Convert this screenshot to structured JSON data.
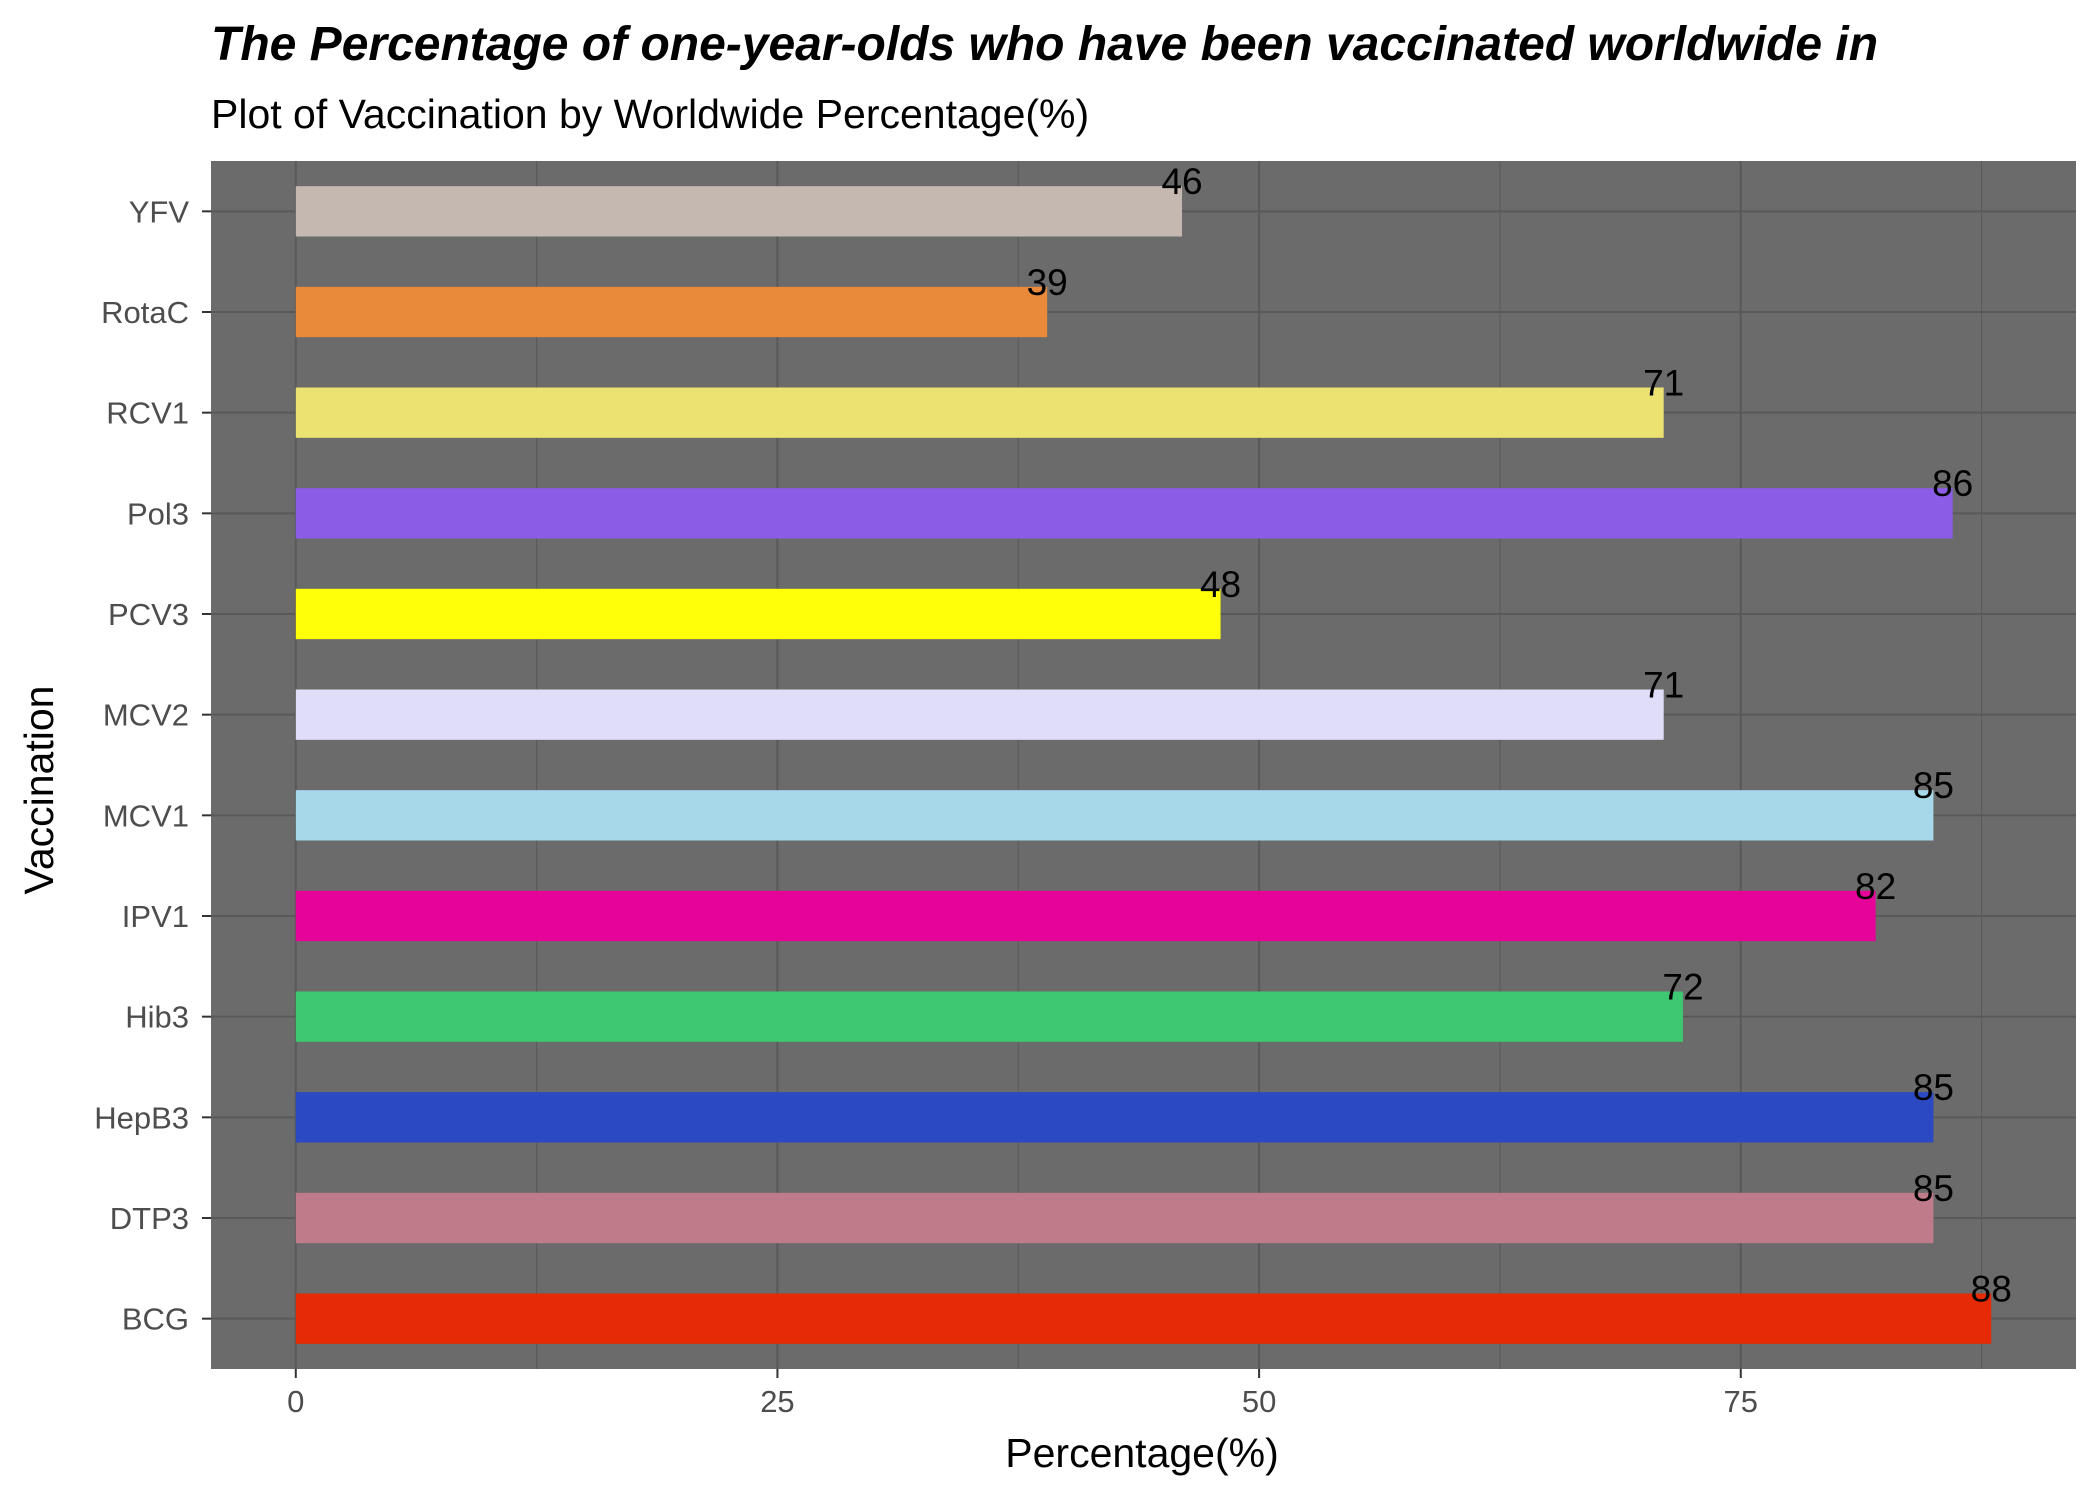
{
  "chart_data": {
    "type": "bar",
    "orientation": "horizontal",
    "title": "The Percentage of one-year-olds who have been vaccinated worldwide in",
    "subtitle": "Plot of Vaccination by Worldwide Percentage(%)",
    "xlabel": "Percentage(%)",
    "ylabel": "Vaccination",
    "categories": [
      "BCG",
      "DTP3",
      "HepB3",
      "Hib3",
      "IPV1",
      "MCV1",
      "MCV2",
      "PCV3",
      "Pol3",
      "RCV1",
      "RotaC",
      "YFV"
    ],
    "values": [
      88,
      85,
      85,
      72,
      82,
      85,
      71,
      48,
      86,
      71,
      39,
      46
    ],
    "colors": [
      "#e62a06",
      "#c07b8a",
      "#2b49c2",
      "#3ec871",
      "#e6039a",
      "#a6d8ea",
      "#dfddf8",
      "#ffff0a",
      "#8b5ce6",
      "#ebe272",
      "#e98a3a",
      "#c4b8b0"
    ],
    "xticks": [
      0,
      25,
      50,
      75
    ],
    "xtick_labels": [
      "0",
      "25",
      "50",
      "75"
    ],
    "xlim": [
      -4.4,
      92.4
    ],
    "grid": true,
    "panel_background": "#6b6b6b",
    "gridline_color": "#595959",
    "legend": "none"
  }
}
